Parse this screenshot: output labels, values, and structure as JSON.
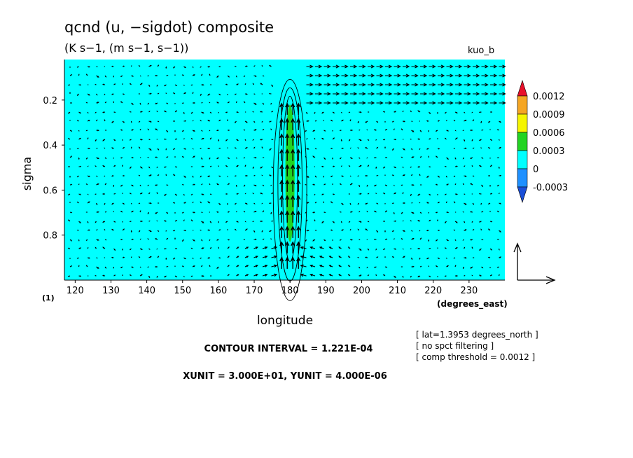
{
  "chart_data": {
    "type": "heatmap",
    "title": "qcnd (u, −sigdot) composite",
    "subtitle": "(K s−1, (m s−1, s−1))",
    "corner_label": "kuo_b",
    "xlabel": "longitude",
    "x_units": "(degrees_east)",
    "ylabel": "sigma",
    "y_units": "(1)",
    "x_range": [
      117,
      240
    ],
    "y_range": [
      1.0,
      0.02
    ],
    "y_inverted": true,
    "x_ticks": [
      120,
      130,
      140,
      150,
      160,
      170,
      180,
      190,
      200,
      210,
      220,
      230
    ],
    "y_ticks": [
      0.2,
      0.4,
      0.6,
      0.8
    ],
    "colorbar": {
      "levels": [
        "0.0012",
        "0.0009",
        "0.0006",
        "0.0003",
        "0",
        "-0.0003"
      ],
      "colors": [
        "#e8102a",
        "#f5a623",
        "#f5f500",
        "#22d422",
        "#00ffff",
        "#1e90ff",
        "#1a4fd8"
      ],
      "extend": "both"
    },
    "background_field_color": "#00ffff",
    "anomaly": {
      "center_lon": 180,
      "half_width_lon": 1.3,
      "sigma_top": 0.22,
      "sigma_bottom": 0.83,
      "max_value": 0.0006,
      "fill_color": "#22d422"
    },
    "vector_reference": {
      "xunit": "3.000E+01",
      "yunit": "4.000E-06"
    },
    "notes": {
      "contour_interval": "CONTOUR INTERVAL = 1.221E-04",
      "units_line": "XUNIT = 3.000E+01, YUNIT = 4.000E-06",
      "info": [
        "[ lat=1.3953 degrees_north ]",
        "[ no spct filtering ]",
        "[ comp threshold = 0.0012 ]"
      ]
    }
  }
}
